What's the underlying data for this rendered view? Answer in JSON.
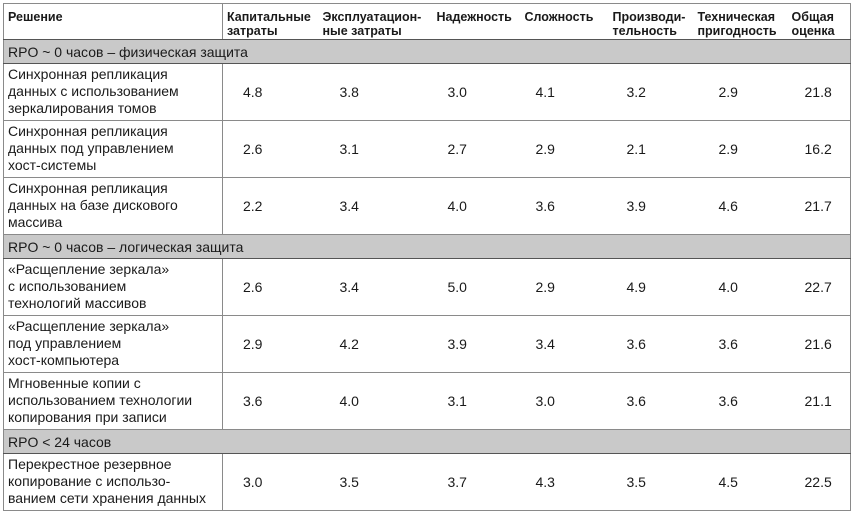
{
  "headers": {
    "solution": "Решение",
    "capex_l1": "Капитальные",
    "capex_l2": "затраты",
    "opex_l1": "Эксплуатацион-",
    "opex_l2": "ные затраты",
    "reliability": "Надежность",
    "complexity": "Сложность",
    "perf_l1": "Производи-",
    "perf_l2": "тельность",
    "tech_l1": "Техническая",
    "tech_l2": "пригодность",
    "total_l1": "Общая",
    "total_l2": "оценка"
  },
  "groups": [
    {
      "title": "RPO ~ 0 часов – физическая защита",
      "rows": [
        {
          "solution": [
            "Синхронная репликация",
            "данных с использованием",
            "зеркалирования томов"
          ],
          "values": [
            "4.8",
            "3.8",
            "3.0",
            "4.1",
            "3.2",
            "2.9",
            "21.8"
          ]
        },
        {
          "solution": [
            "Синхронная репликация",
            "данных под управлением",
            "хост-системы"
          ],
          "values": [
            "2.6",
            "3.1",
            "2.7",
            "2.9",
            "2.1",
            "2.9",
            "16.2"
          ]
        },
        {
          "solution": [
            "Синхронная репликация",
            "данных на базе дискового",
            "массива"
          ],
          "values": [
            "2.2",
            "3.4",
            "4.0",
            "3.6",
            "3.9",
            "4.6",
            "21.7"
          ]
        }
      ]
    },
    {
      "title": "RPO ~ 0 часов – логическая защита",
      "rows": [
        {
          "solution": [
            "«Расщепление зеркала»",
            "с использованием",
            "технологий массивов"
          ],
          "values": [
            "2.6",
            "3.4",
            "5.0",
            "2.9",
            "4.9",
            "4.0",
            "22.7"
          ]
        },
        {
          "solution": [
            "«Расщепление зеркала»",
            "под управлением",
            "хост-компьютера"
          ],
          "values": [
            "2.9",
            "4.2",
            "3.9",
            "3.4",
            "3.6",
            "3.6",
            "21.6"
          ]
        },
        {
          "solution": [
            "Мгновенные копии с",
            "использованием технологии",
            "копирования при записи"
          ],
          "values": [
            "3.6",
            "4.0",
            "3.1",
            "3.0",
            "3.6",
            "3.6",
            "21.1"
          ]
        }
      ]
    },
    {
      "title": "RPO < 24 часов",
      "rows": [
        {
          "solution": [
            "Перекрестное резервное",
            "копирование с исполь­зо-",
            "ванием сети хранения данных"
          ],
          "values": [
            "3.0",
            "3.5",
            "3.7",
            "4.3",
            "3.5",
            "4.5",
            "22.5"
          ]
        }
      ]
    }
  ]
}
